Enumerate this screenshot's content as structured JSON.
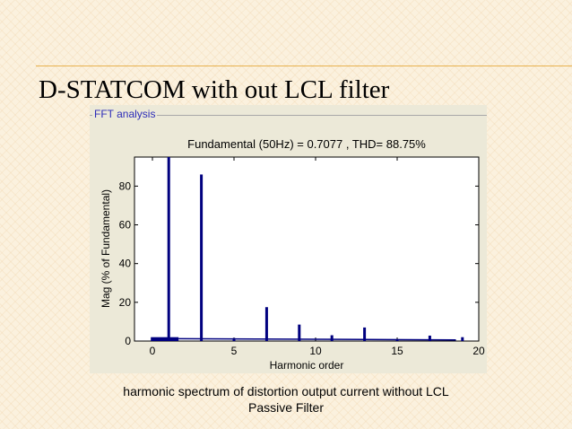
{
  "slide": {
    "title": "D-STATCOM with out LCL filter",
    "caption_line1": "harmonic spectrum of distortion output current without LCL",
    "caption_line2": "Passive Filter"
  },
  "panel": {
    "label": "FFT analysis"
  },
  "chart_data": {
    "type": "bar",
    "title": "Fundamental (50Hz) = 0.7077 , THD= 88.75%",
    "xlabel": "Harmonic order",
    "ylabel": "Mag (% of Fundamental)",
    "xlim": [
      -1.1,
      20
    ],
    "ylim": [
      0,
      95
    ],
    "xticks": [
      0,
      5,
      10,
      15,
      20
    ],
    "yticks": [
      0,
      20,
      40,
      60,
      80
    ],
    "grid": false,
    "bar_color": "#00007f",
    "x": [
      1,
      3,
      5,
      7,
      9,
      11,
      13,
      15,
      17,
      19
    ],
    "values": [
      100,
      86,
      1.5,
      17.5,
      8.5,
      3,
      7,
      0.8,
      2.8,
      2
    ],
    "low_band": {
      "x": [
        -0.1,
        1.6
      ],
      "value": 2
    }
  }
}
